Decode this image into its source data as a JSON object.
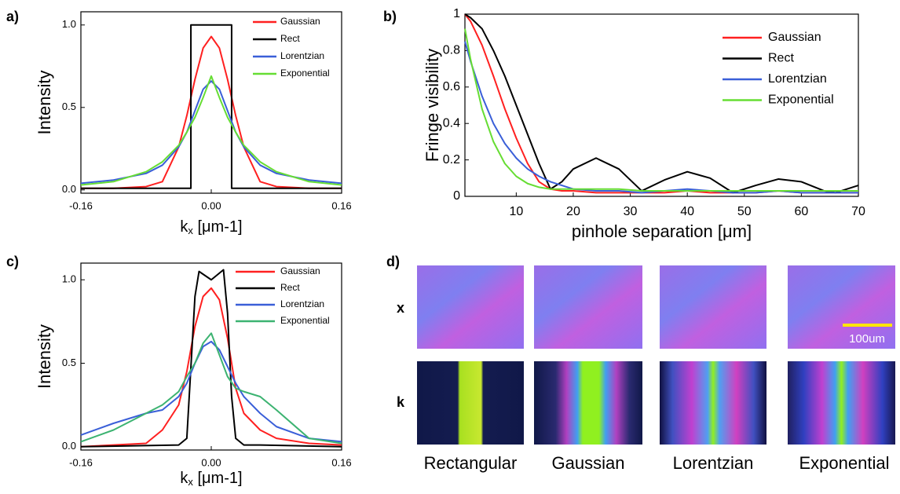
{
  "chart_data": [
    {
      "type": "line",
      "panel_label": "a)",
      "ylabel": "Intensity",
      "xlabel": {
        "main": "k",
        "sub": "x",
        "rest": " [μm-1]"
      },
      "xlim": [
        -0.16,
        0.16
      ],
      "ylim": [
        -0.02,
        1.08
      ],
      "xticks": [
        -0.16,
        {
          "value": 0,
          "label": "0.00"
        },
        0.16
      ],
      "yticks": [
        {
          "value": 0,
          "label": "0.0"
        },
        {
          "value": 0.5,
          "label": "0.5"
        },
        {
          "value": 1,
          "label": "1.0"
        }
      ],
      "grid": false,
      "legend": "upper right",
      "x": [
        -0.16,
        -0.12,
        -0.08,
        -0.06,
        -0.04,
        -0.03,
        -0.02,
        -0.01,
        0,
        0.01,
        0.02,
        0.03,
        0.04,
        0.06,
        0.08,
        0.12,
        0.16
      ],
      "series": [
        {
          "name": "Gaussian",
          "color": "#ff2020",
          "values": [
            0.01,
            0.01,
            0.02,
            0.05,
            0.26,
            0.45,
            0.67,
            0.86,
            0.93,
            0.86,
            0.67,
            0.45,
            0.26,
            0.05,
            0.02,
            0.01,
            0.01
          ]
        },
        {
          "name": "Rect",
          "color": "#000000",
          "x": [
            -0.16,
            -0.025,
            -0.025,
            0.025,
            0.025,
            0.16
          ],
          "values": [
            0.01,
            0.01,
            1.0,
            1.0,
            0.01,
            0.01
          ]
        },
        {
          "name": "Lorentzian",
          "color": "#3a5fd8",
          "values": [
            0.04,
            0.06,
            0.1,
            0.15,
            0.26,
            0.35,
            0.48,
            0.61,
            0.66,
            0.61,
            0.48,
            0.35,
            0.26,
            0.15,
            0.1,
            0.06,
            0.04
          ]
        },
        {
          "name": "Exponential",
          "color": "#66dd33",
          "values": [
            0.03,
            0.05,
            0.11,
            0.17,
            0.27,
            0.35,
            0.44,
            0.56,
            0.69,
            0.56,
            0.44,
            0.35,
            0.27,
            0.17,
            0.11,
            0.05,
            0.03
          ]
        }
      ]
    },
    {
      "type": "line",
      "panel_label": "b)",
      "ylabel": "Fringe visibility",
      "xlabel": {
        "main": "pinhole separation [μm]"
      },
      "xlim": [
        1,
        70
      ],
      "ylim": [
        0,
        1
      ],
      "xticks": [
        10,
        20,
        30,
        40,
        50,
        60,
        70
      ],
      "yticks": [
        0,
        0.2,
        0.4,
        0.6,
        0.8,
        1
      ],
      "grid": false,
      "legend": "upper right",
      "x": [
        1,
        2,
        4,
        6,
        8,
        10,
        12,
        14,
        16,
        18,
        20,
        24,
        28,
        32,
        36,
        40,
        44,
        48,
        52,
        56,
        60,
        64,
        66,
        68,
        70
      ],
      "series": [
        {
          "name": "Gaussian",
          "color": "#ff2020",
          "values": [
            1.0,
            0.96,
            0.83,
            0.66,
            0.48,
            0.32,
            0.18,
            0.08,
            0.04,
            0.03,
            0.03,
            0.02,
            0.02,
            0.02,
            0.02,
            0.03,
            0.02,
            0.02,
            0.02,
            0.03,
            0.02,
            0.02,
            0.02,
            0.02,
            0.02
          ]
        },
        {
          "name": "Rect",
          "color": "#000000",
          "values": [
            1.0,
            0.98,
            0.92,
            0.8,
            0.66,
            0.5,
            0.34,
            0.18,
            0.04,
            0.08,
            0.15,
            0.21,
            0.15,
            0.03,
            0.09,
            0.135,
            0.1,
            0.02,
            0.06,
            0.095,
            0.08,
            0.03,
            0.02,
            0.04,
            0.06
          ]
        },
        {
          "name": "Lorentzian",
          "color": "#3a5fd8",
          "values": [
            0.85,
            0.74,
            0.55,
            0.4,
            0.29,
            0.21,
            0.15,
            0.11,
            0.08,
            0.06,
            0.04,
            0.03,
            0.03,
            0.02,
            0.03,
            0.04,
            0.03,
            0.02,
            0.02,
            0.03,
            0.02,
            0.02,
            0.02,
            0.02,
            0.02
          ]
        },
        {
          "name": "Exponential",
          "color": "#66dd33",
          "values": [
            0.92,
            0.75,
            0.48,
            0.3,
            0.18,
            0.11,
            0.07,
            0.05,
            0.04,
            0.04,
            0.04,
            0.04,
            0.04,
            0.03,
            0.03,
            0.03,
            0.03,
            0.03,
            0.03,
            0.03,
            0.03,
            0.03,
            0.03,
            0.03,
            0.03
          ]
        }
      ]
    },
    {
      "type": "line",
      "panel_label": "c)",
      "ylabel": "Intensity",
      "xlabel": {
        "main": "k",
        "sub": "x",
        "rest": " [μm-1]"
      },
      "xlim": [
        -0.16,
        0.16
      ],
      "ylim": [
        -0.02,
        1.1
      ],
      "xticks": [
        -0.16,
        {
          "value": 0,
          "label": "0.00"
        },
        0.16
      ],
      "yticks": [
        {
          "value": 0,
          "label": "0.0"
        },
        {
          "value": 0.5,
          "label": "0.5"
        },
        {
          "value": 1,
          "label": "1.0"
        }
      ],
      "grid": false,
      "legend": "upper right",
      "x": [
        -0.16,
        -0.12,
        -0.08,
        -0.06,
        -0.04,
        -0.03,
        -0.02,
        -0.01,
        0,
        0.01,
        0.02,
        0.03,
        0.04,
        0.06,
        0.08,
        0.12,
        0.16
      ],
      "series": [
        {
          "name": "Gaussian",
          "color": "#ff2020",
          "values": [
            0.0,
            0.01,
            0.02,
            0.1,
            0.25,
            0.45,
            0.72,
            0.9,
            0.95,
            0.88,
            0.65,
            0.35,
            0.2,
            0.1,
            0.05,
            0.02,
            0.01
          ]
        },
        {
          "name": "Rect",
          "color": "#000000",
          "x": [
            -0.16,
            -0.04,
            -0.03,
            -0.02,
            -0.015,
            0,
            0.01,
            0.015,
            0.02,
            0.025,
            0.03,
            0.04,
            0.06,
            0.16
          ],
          "values": [
            0.0,
            0.01,
            0.05,
            0.9,
            1.05,
            1.0,
            1.04,
            1.06,
            0.8,
            0.3,
            0.05,
            0.01,
            0.01,
            0.0
          ]
        },
        {
          "name": "Lorentzian",
          "color": "#3a5fd8",
          "values": [
            0.07,
            0.14,
            0.2,
            0.22,
            0.3,
            0.38,
            0.5,
            0.6,
            0.63,
            0.58,
            0.48,
            0.38,
            0.3,
            0.2,
            0.12,
            0.05,
            0.03
          ]
        },
        {
          "name": "Exponential",
          "color": "#3cb371",
          "values": [
            0.03,
            0.1,
            0.2,
            0.25,
            0.33,
            0.42,
            0.5,
            0.62,
            0.68,
            0.55,
            0.42,
            0.35,
            0.33,
            0.3,
            0.22,
            0.05,
            0.02
          ]
        }
      ]
    }
  ],
  "image_panel": {
    "panel_label": "d)",
    "rows": [
      "x",
      "k"
    ],
    "columns": [
      "Rectangular",
      "Gaussian",
      "Lorentzian",
      "Exponential"
    ],
    "scale_bar": "100um"
  }
}
